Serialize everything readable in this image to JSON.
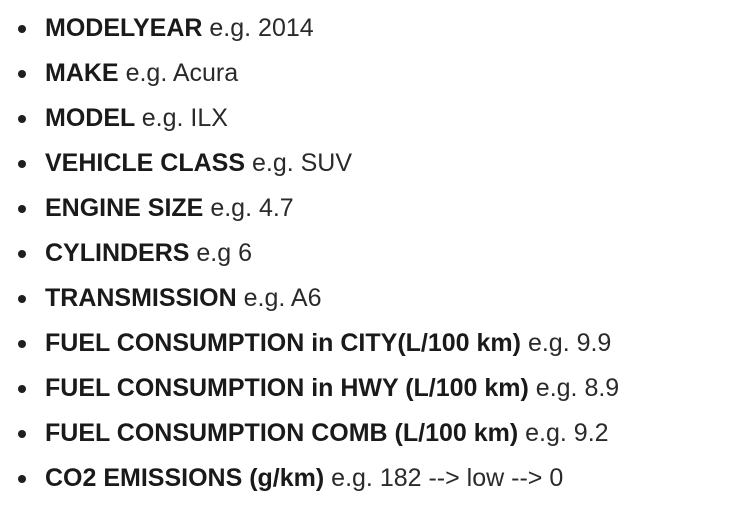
{
  "fields": [
    {
      "name": "MODELYEAR",
      "example": "e.g. 2014"
    },
    {
      "name": "MAKE",
      "example": "e.g. Acura"
    },
    {
      "name": "MODEL",
      "example": "e.g. ILX"
    },
    {
      "name": "VEHICLE CLASS",
      "example": "e.g. SUV"
    },
    {
      "name": "ENGINE SIZE",
      "example": "e.g. 4.7"
    },
    {
      "name": "CYLINDERS",
      "example": "e.g 6"
    },
    {
      "name": "TRANSMISSION",
      "example": "e.g. A6"
    },
    {
      "name": "FUEL CONSUMPTION in CITY(L/100 km)",
      "example": "e.g. 9.9"
    },
    {
      "name": "FUEL CONSUMPTION in HWY (L/100 km)",
      "example": "e.g. 8.9"
    },
    {
      "name": "FUEL CONSUMPTION COMB (L/100 km)",
      "example": "e.g. 9.2"
    },
    {
      "name": "CO2 EMISSIONS (g/km)",
      "example": "e.g. 182 --> low --> 0"
    }
  ]
}
